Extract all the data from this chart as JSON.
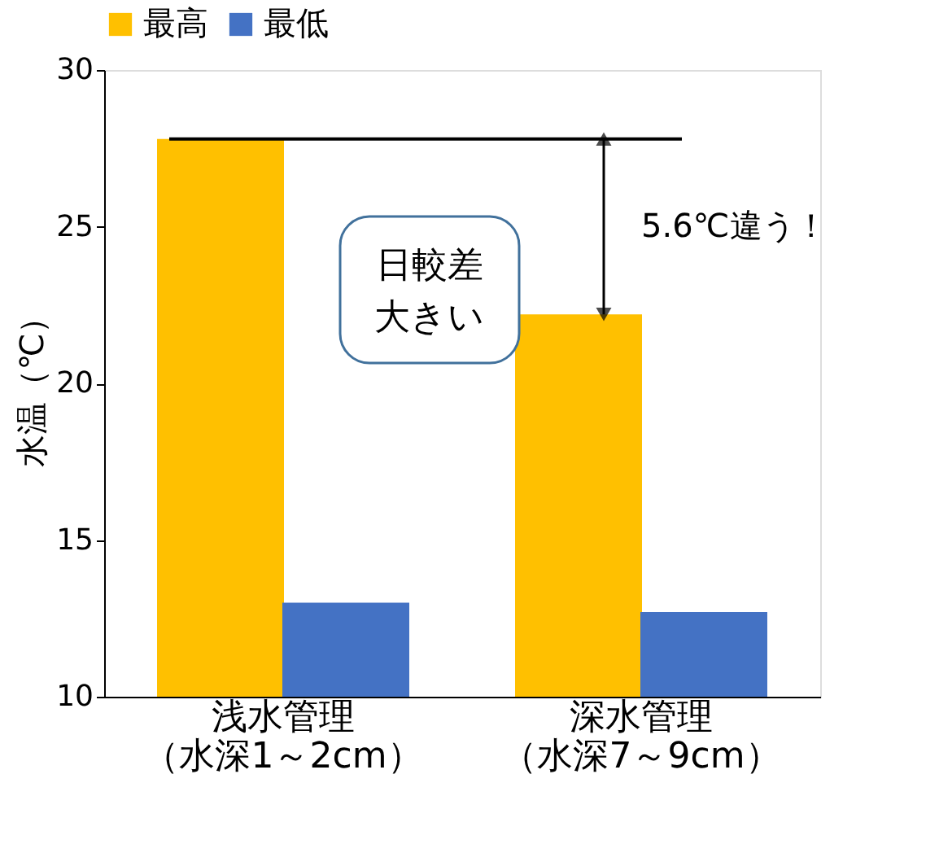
{
  "chart_data": {
    "type": "bar",
    "ylabel": "水温（℃）",
    "categories": [
      "浅水管理（水深1～2cm）",
      "深水管理（水深7～9cm）"
    ],
    "series": [
      {
        "name": "最高",
        "color": "#ffc000",
        "values": [
          27.8,
          22.2
        ]
      },
      {
        "name": "最低",
        "color": "#4472c4",
        "values": [
          13.0,
          12.7
        ]
      }
    ],
    "ylim": [
      10,
      30
    ],
    "yticks": [
      10,
      15,
      20,
      25,
      30
    ],
    "grid": false,
    "legend": "top",
    "ref_lines": [
      {
        "axis": "y",
        "value": 27.8,
        "color": "#000000"
      }
    ],
    "annotations": [
      "日較差",
      "大きい",
      "5.6℃違う！"
    ]
  }
}
